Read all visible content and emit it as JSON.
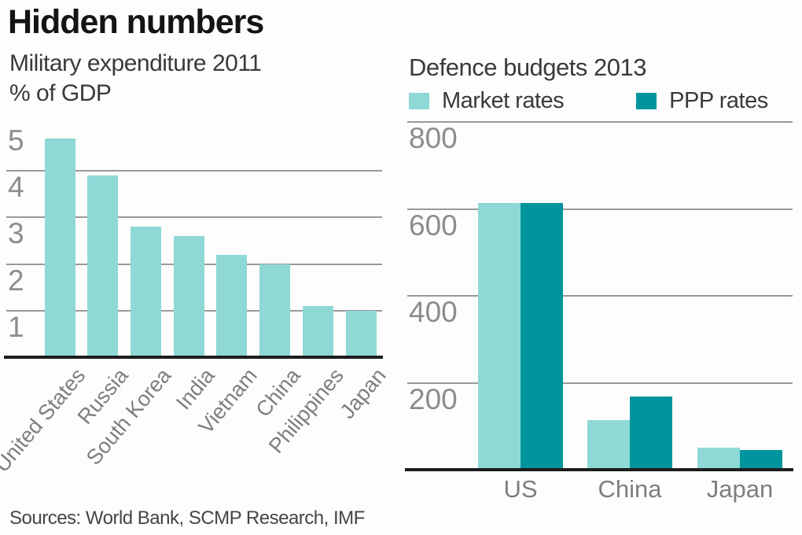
{
  "title": "Hidden numbers",
  "source_note": "Sources: World Bank, SCMP Research, IMF",
  "colors": {
    "market_rate": "#8ed8d6",
    "ppp_rate": "#00959c",
    "gridline": "#999999",
    "axis_line": "#1d1d1d",
    "tick_label": "#8c8c8c",
    "category_label": "#7e7e7e"
  },
  "chart_data": [
    {
      "type": "bar",
      "title": "Military expenditure 2011",
      "ylabel": "% of GDP",
      "categories": [
        "United States",
        "Russia",
        "South Korea",
        "India",
        "Vietnam",
        "China",
        "Philippines",
        "Japan"
      ],
      "values": [
        4.7,
        3.9,
        2.8,
        2.6,
        2.2,
        2.0,
        1.1,
        1.0
      ],
      "yticks": [
        5,
        4,
        3,
        2,
        1
      ],
      "gridlines": [
        4,
        3,
        2,
        1
      ],
      "ylim": [
        0,
        5.15
      ],
      "grid": "horizontal",
      "legend_position": "none",
      "xlabel_rotation": -50
    },
    {
      "type": "bar",
      "title": "Defence budgets 2013",
      "categories": [
        "US",
        "China",
        "Japan"
      ],
      "series": [
        {
          "name": "Market rates",
          "values": [
            614,
            114,
            51
          ]
        },
        {
          "name": "PPP rates",
          "values": [
            614,
            169,
            45
          ]
        }
      ],
      "yticks": [
        800,
        600,
        400,
        200
      ],
      "gridlines": [
        800,
        600,
        400,
        200
      ],
      "ylim": [
        0,
        810
      ],
      "grid": "horizontal",
      "legend_position": "top",
      "xlabel_rotation": 0
    }
  ]
}
